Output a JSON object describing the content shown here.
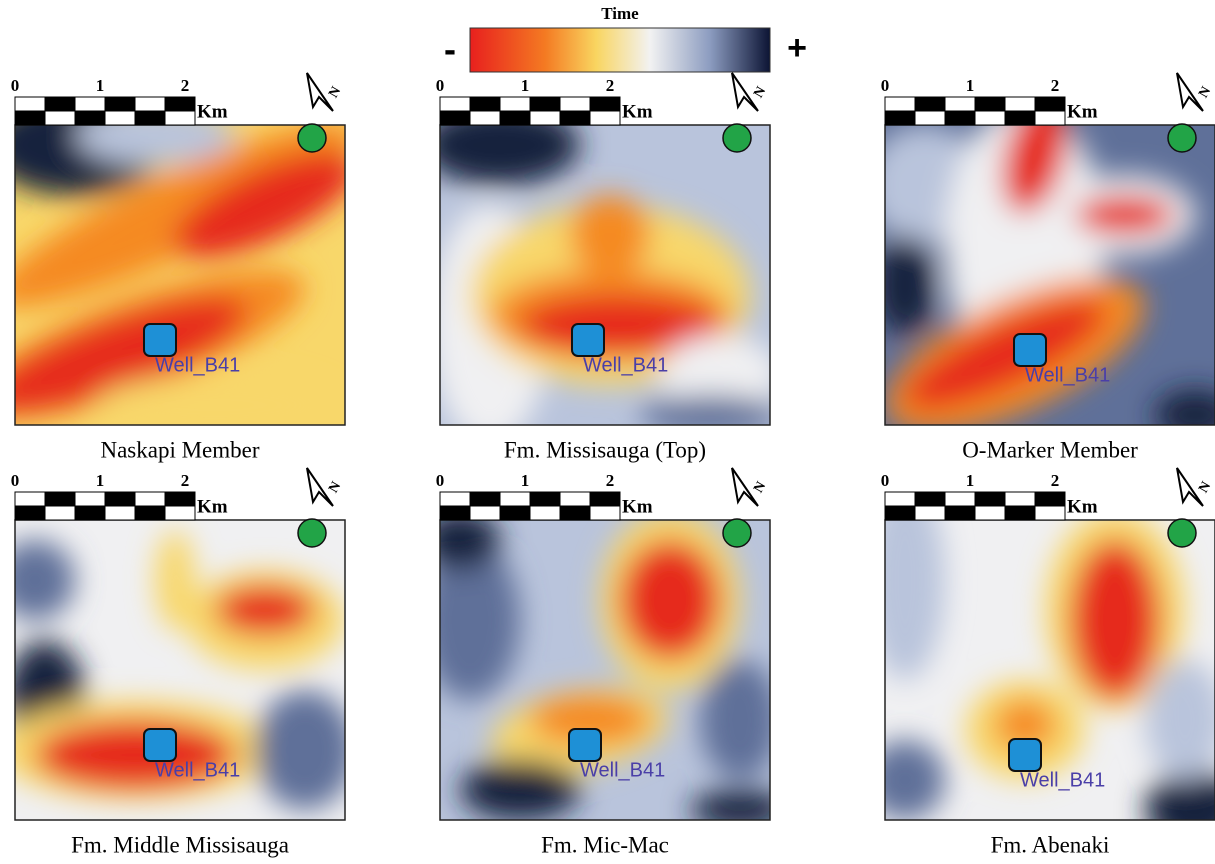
{
  "colorbar": {
    "title": "Time",
    "min_label": "-",
    "max_label": "+"
  },
  "scale_bar": {
    "ticks": [
      "0",
      "1",
      "2"
    ],
    "unit": "Km"
  },
  "north_label": "N",
  "well_label": "Well_B41",
  "panels": [
    {
      "title": "Naskapi Member"
    },
    {
      "title": "Fm. Missisauga (Top)"
    },
    {
      "title": "O-Marker Member"
    },
    {
      "title": "Fm. Middle Missisauga"
    },
    {
      "title": "Fm. Mic-Mac"
    },
    {
      "title": "Fm. Abenaki"
    }
  ]
}
